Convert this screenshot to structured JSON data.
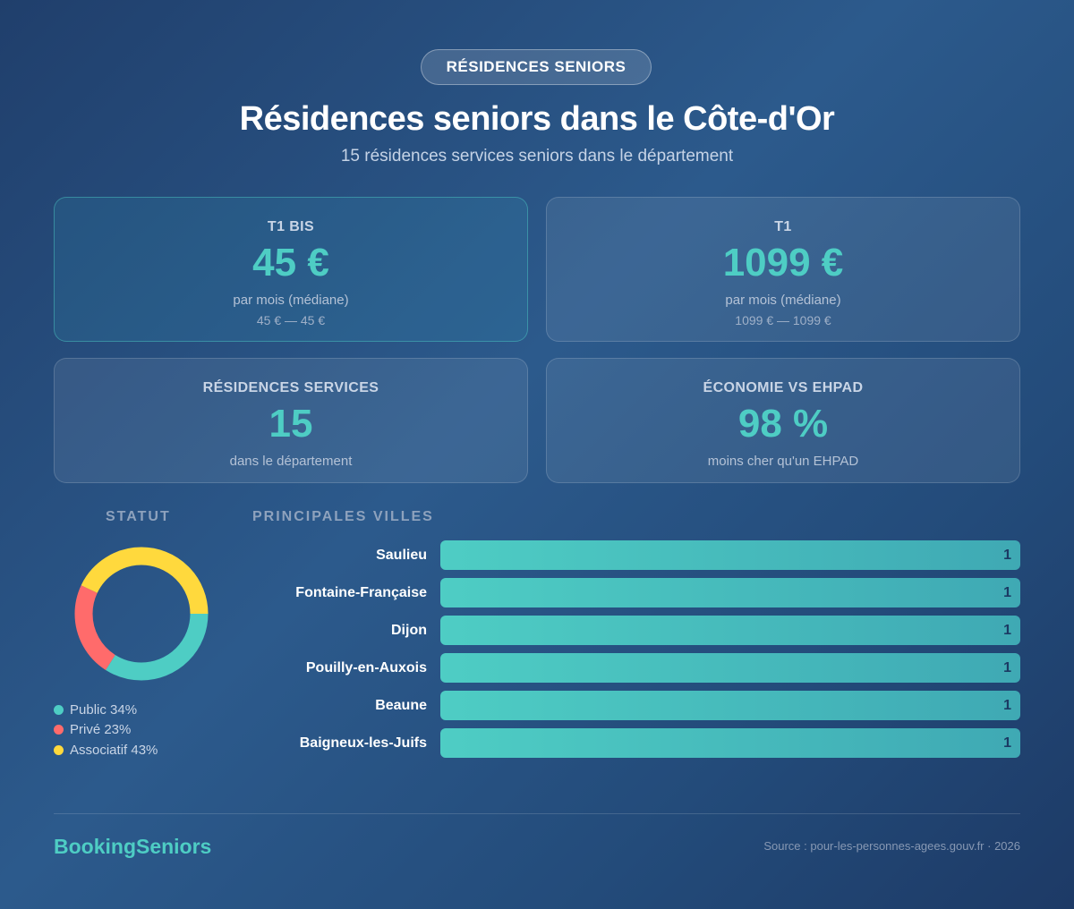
{
  "header": {
    "badge": "RÉSIDENCES SENIORS",
    "title": "Résidences seniors dans le Côte-d'Or",
    "subtitle": "15 résidences services seniors dans le département"
  },
  "cards": [
    {
      "label": "T1 BIS",
      "value": "45 €",
      "sub": "par mois (médiane)",
      "range": "45 € — 45 €"
    },
    {
      "label": "T1",
      "value": "1099 €",
      "sub": "par mois (médiane)",
      "range": "1099 € — 1099 €"
    },
    {
      "label": "RÉSIDENCES SERVICES",
      "value": "15",
      "sub": "dans le département"
    },
    {
      "label": "ÉCONOMIE VS EHPAD",
      "value": "98 %",
      "sub": "moins cher qu'un EHPAD"
    }
  ],
  "colors": {
    "accent": "#4ecdc4",
    "public": "#4ecdc4",
    "prive": "#ff6b6b",
    "associatif": "#ffd93d"
  },
  "chart_data": [
    {
      "type": "pie",
      "title": "STATUT",
      "donut": true,
      "slices": [
        {
          "label": "Public 34%",
          "value": 34,
          "color": "#4ecdc4"
        },
        {
          "label": "Privé 23%",
          "value": 23,
          "color": "#ff6b6b"
        },
        {
          "label": "Associatif 43%",
          "value": 43,
          "color": "#ffd93d"
        }
      ]
    },
    {
      "type": "bar",
      "orientation": "horizontal",
      "title": "PRINCIPALES VILLES",
      "categories": [
        "Saulieu",
        "Fontaine-Française",
        "Dijon",
        "Pouilly-en-Auxois",
        "Beaune",
        "Baigneux-les-Juifs"
      ],
      "values": [
        1,
        1,
        1,
        1,
        1,
        1
      ],
      "xlim": [
        0,
        1
      ]
    }
  ],
  "footer": {
    "brand": "BookingSeniors",
    "source": "Source : pour-les-personnes-agees.gouv.fr · 2026"
  }
}
